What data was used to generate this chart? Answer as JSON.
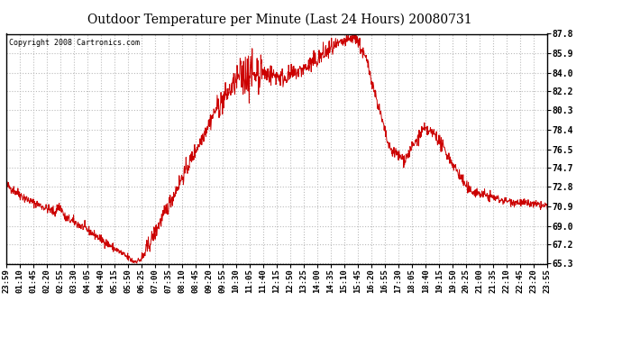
{
  "title": "Outdoor Temperature per Minute (Last 24 Hours) 20080731",
  "copyright": "Copyright 2008 Cartronics.com",
  "line_color": "#cc0000",
  "bg_color": "#ffffff",
  "grid_color": "#bbbbbb",
  "ylim": [
    65.3,
    87.8
  ],
  "yticks": [
    65.3,
    67.2,
    69.0,
    70.9,
    72.8,
    74.7,
    76.5,
    78.4,
    80.3,
    82.2,
    84.0,
    85.9,
    87.8
  ],
  "xtick_labels": [
    "23:59",
    "01:10",
    "01:45",
    "02:20",
    "02:55",
    "03:30",
    "04:05",
    "04:40",
    "05:15",
    "05:50",
    "06:25",
    "07:00",
    "07:35",
    "08:10",
    "08:45",
    "09:20",
    "09:55",
    "10:30",
    "11:05",
    "11:40",
    "12:15",
    "12:50",
    "13:25",
    "14:00",
    "14:35",
    "15:10",
    "15:45",
    "16:20",
    "16:55",
    "17:30",
    "18:05",
    "18:40",
    "19:15",
    "19:50",
    "20:25",
    "21:00",
    "21:35",
    "22:10",
    "22:45",
    "23:20",
    "23:55"
  ],
  "figsize": [
    6.9,
    3.75
  ],
  "dpi": 100
}
